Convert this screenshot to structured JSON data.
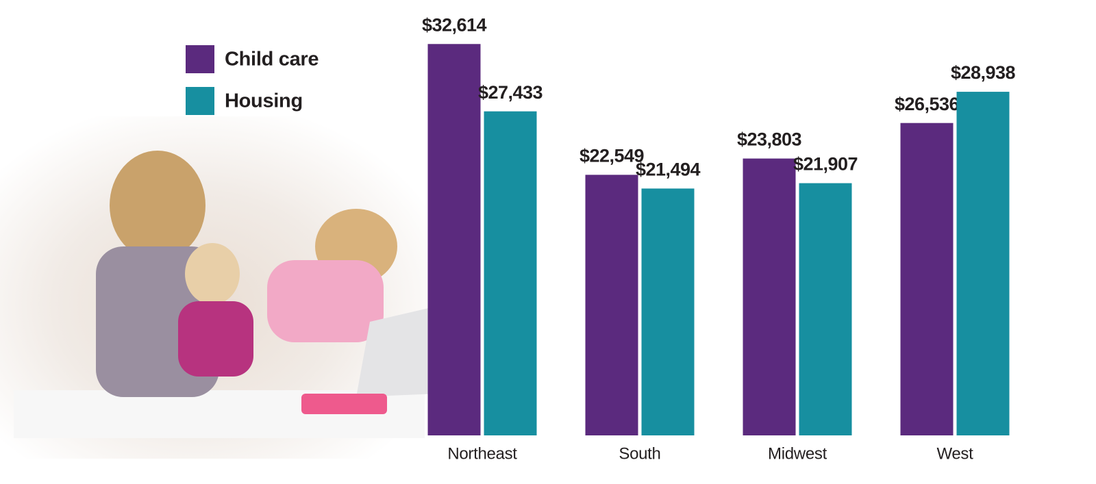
{
  "chart_data": {
    "type": "bar",
    "categories": [
      "Northeast",
      "South",
      "Midwest",
      "West"
    ],
    "series": [
      {
        "name": "Child care",
        "color": "#5b2a7e",
        "values": [
          32614,
          22549,
          23803,
          26536
        ],
        "value_labels": [
          "$32,614",
          "$22,549",
          "$23,803",
          "$26,536"
        ]
      },
      {
        "name": "Housing",
        "color": "#178fa0",
        "values": [
          27433,
          21494,
          21907,
          28938
        ],
        "value_labels": [
          "$27,433",
          "$21,494",
          "$21,907",
          "$28,938"
        ]
      }
    ],
    "ylim": [
      2500,
      36000
    ]
  }
}
